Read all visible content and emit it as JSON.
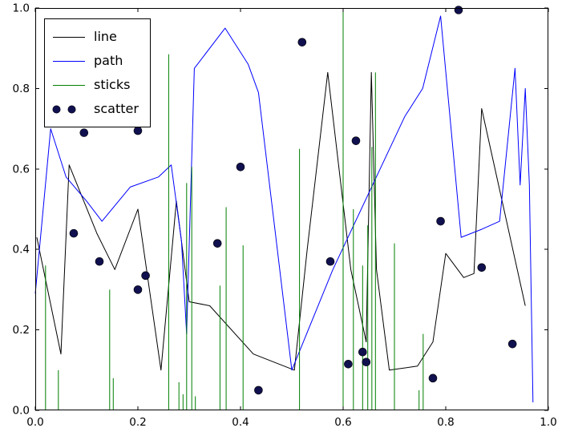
{
  "chart_data": {
    "type": "line",
    "title": "",
    "xlabel": "",
    "ylabel": "",
    "xlim": [
      0.0,
      1.0
    ],
    "ylim": [
      0.0,
      1.0
    ],
    "xticks": [
      "0.0",
      "0.2",
      "0.4",
      "0.6",
      "0.8",
      "1.0"
    ],
    "yticks": [
      "0.0",
      "0.2",
      "0.4",
      "0.6",
      "0.8",
      "1.0"
    ],
    "grid": false,
    "legend_position": "upper left",
    "frame_color": "#000000",
    "background": "#ffffff",
    "series": [
      {
        "name": "line",
        "type": "line",
        "color": "#000000",
        "x": [
          0.003,
          0.05,
          0.066,
          0.12,
          0.155,
          0.2,
          0.245,
          0.275,
          0.3,
          0.34,
          0.425,
          0.505,
          0.53,
          0.57,
          0.615,
          0.645,
          0.655,
          0.665,
          0.69,
          0.745,
          0.775,
          0.8,
          0.835,
          0.855,
          0.87,
          0.955
        ],
        "y": [
          0.43,
          0.14,
          0.61,
          0.44,
          0.35,
          0.5,
          0.1,
          0.52,
          0.27,
          0.26,
          0.14,
          0.1,
          0.4,
          0.84,
          0.35,
          0.17,
          0.84,
          0.35,
          0.1,
          0.11,
          0.17,
          0.39,
          0.33,
          0.34,
          0.75,
          0.26
        ]
      },
      {
        "name": "path",
        "type": "line",
        "color": "#0000ff",
        "x": [
          0.0,
          0.03,
          0.06,
          0.1,
          0.13,
          0.185,
          0.24,
          0.265,
          0.285,
          0.295,
          0.31,
          0.37,
          0.415,
          0.435,
          0.5,
          0.58,
          0.72,
          0.755,
          0.79,
          0.83,
          0.87,
          0.905,
          0.935,
          0.945,
          0.955,
          0.963,
          0.97
        ],
        "y": [
          0.29,
          0.7,
          0.58,
          0.52,
          0.47,
          0.555,
          0.58,
          0.61,
          0.42,
          0.19,
          0.85,
          0.95,
          0.86,
          0.79,
          0.1,
          0.35,
          0.73,
          0.8,
          0.98,
          0.43,
          0.45,
          0.47,
          0.85,
          0.56,
          0.8,
          0.56,
          0.02
        ]
      },
      {
        "name": "sticks",
        "type": "sticks",
        "color": "#007f00",
        "x": [
          0.02,
          0.045,
          0.145,
          0.152,
          0.26,
          0.28,
          0.288,
          0.295,
          0.305,
          0.312,
          0.36,
          0.372,
          0.405,
          0.515,
          0.6,
          0.62,
          0.638,
          0.648,
          0.656,
          0.663,
          0.7,
          0.748,
          0.756
        ],
        "y": [
          0.36,
          0.1,
          0.3,
          0.08,
          0.885,
          0.07,
          0.04,
          0.565,
          0.605,
          0.035,
          0.31,
          0.505,
          0.41,
          0.65,
          1.0,
          0.5,
          0.36,
          0.46,
          0.655,
          0.84,
          0.415,
          0.05,
          0.19
        ]
      },
      {
        "name": "scatter",
        "type": "scatter",
        "color": "#10104f",
        "marker_radius": 5,
        "legend_dots": 2,
        "x": [
          0.075,
          0.095,
          0.125,
          0.2,
          0.2,
          0.215,
          0.355,
          0.4,
          0.435,
          0.52,
          0.575,
          0.61,
          0.625,
          0.638,
          0.645,
          0.775,
          0.79,
          0.825,
          0.87,
          0.93
        ],
        "y": [
          0.44,
          0.69,
          0.37,
          0.695,
          0.3,
          0.335,
          0.415,
          0.605,
          0.05,
          0.915,
          0.37,
          0.115,
          0.67,
          0.145,
          0.12,
          0.08,
          0.47,
          0.995,
          0.355,
          0.165
        ]
      }
    ]
  }
}
